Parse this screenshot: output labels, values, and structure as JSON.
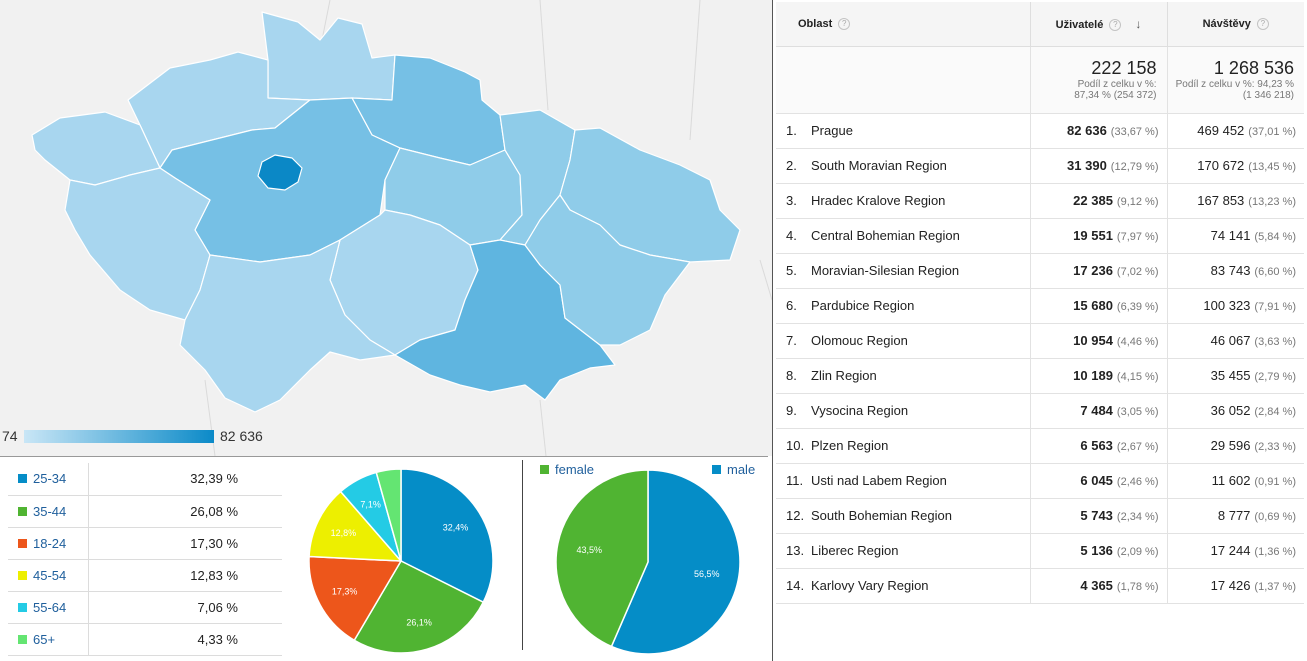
{
  "map": {
    "legend_min": "74",
    "legend_max": "82 636",
    "colors": {
      "light": "#a8d6ef",
      "mid": "#8fcce9",
      "darker": "#76c0e5",
      "dark": "#5fb5e0",
      "prague": "#0b88c6"
    }
  },
  "age": {
    "rows": [
      {
        "label": "25-34",
        "value": "32,39 %",
        "color": "#058dc7"
      },
      {
        "label": "35-44",
        "value": "26,08 %",
        "color": "#50b432"
      },
      {
        "label": "18-24",
        "value": "17,30 %",
        "color": "#ed561b"
      },
      {
        "label": "45-54",
        "value": "12,83 %",
        "color": "#edef00"
      },
      {
        "label": "55-64",
        "value": "7,06 %",
        "color": "#24cbe5"
      },
      {
        "label": "65+",
        "value": "4,33 %",
        "color": "#64e572"
      }
    ]
  },
  "chart_data": [
    {
      "type": "pie",
      "categories": [
        "25-34",
        "35-44",
        "18-24",
        "45-54",
        "55-64",
        "65+"
      ],
      "values": [
        32.39,
        26.08,
        17.3,
        12.83,
        7.06,
        4.33
      ],
      "slice_labels": [
        "32,4%",
        "26,1%",
        "17,3%",
        "12,8%",
        "7,1%",
        ""
      ],
      "colors": [
        "#058dc7",
        "#50b432",
        "#ed561b",
        "#edef00",
        "#24cbe5",
        "#64e572"
      ]
    },
    {
      "type": "pie",
      "categories": [
        "male",
        "female"
      ],
      "values": [
        56.5,
        43.5
      ],
      "slice_labels": [
        "56,5%",
        "43,5%"
      ],
      "colors": [
        "#058dc7",
        "#50b432"
      ]
    }
  ],
  "gender": {
    "female_label": "female",
    "male_label": "male",
    "female_color": "#50b432",
    "male_color": "#058dc7"
  },
  "table": {
    "headers": {
      "oblast": "Oblast",
      "users": "Uživatelé",
      "visits": "Návštěvy"
    },
    "help_icon": "?",
    "sort_icon": "↓",
    "totals": {
      "users": "222 158",
      "users_share_1": "Podíl z celku v %:",
      "users_share_2": "87,34 % (254 372)",
      "visits": "1 268 536",
      "visits_share_1": "Podíl z celku v %: 94,23 %",
      "visits_share_2": "(1 346 218)"
    },
    "rows": [
      {
        "idx": "1.",
        "name": "Prague",
        "users": "82 636",
        "users_pct": "(33,67 %)",
        "visits": "469 452",
        "visits_pct": "(37,01 %)"
      },
      {
        "idx": "2.",
        "name": "South Moravian Region",
        "users": "31 390",
        "users_pct": "(12,79 %)",
        "visits": "170 672",
        "visits_pct": "(13,45 %)"
      },
      {
        "idx": "3.",
        "name": "Hradec Kralove Region",
        "users": "22 385",
        "users_pct": "(9,12 %)",
        "visits": "167 853",
        "visits_pct": "(13,23 %)"
      },
      {
        "idx": "4.",
        "name": "Central Bohemian Region",
        "users": "19 551",
        "users_pct": "(7,97 %)",
        "visits": "74 141",
        "visits_pct": "(5,84 %)"
      },
      {
        "idx": "5.",
        "name": "Moravian-Silesian Region",
        "users": "17 236",
        "users_pct": "(7,02 %)",
        "visits": "83 743",
        "visits_pct": "(6,60 %)"
      },
      {
        "idx": "6.",
        "name": "Pardubice Region",
        "users": "15 680",
        "users_pct": "(6,39 %)",
        "visits": "100 323",
        "visits_pct": "(7,91 %)"
      },
      {
        "idx": "7.",
        "name": "Olomouc Region",
        "users": "10 954",
        "users_pct": "(4,46 %)",
        "visits": "46 067",
        "visits_pct": "(3,63 %)"
      },
      {
        "idx": "8.",
        "name": "Zlin Region",
        "users": "10 189",
        "users_pct": "(4,15 %)",
        "visits": "35 455",
        "visits_pct": "(2,79 %)"
      },
      {
        "idx": "9.",
        "name": "Vysocina Region",
        "users": "7 484",
        "users_pct": "(3,05 %)",
        "visits": "36 052",
        "visits_pct": "(2,84 %)"
      },
      {
        "idx": "10.",
        "name": "Plzen Region",
        "users": "6 563",
        "users_pct": "(2,67 %)",
        "visits": "29 596",
        "visits_pct": "(2,33 %)"
      },
      {
        "idx": "11.",
        "name": "Usti nad Labem Region",
        "users": "6 045",
        "users_pct": "(2,46 %)",
        "visits": "11 602",
        "visits_pct": "(0,91 %)"
      },
      {
        "idx": "12.",
        "name": "South Bohemian Region",
        "users": "5 743",
        "users_pct": "(2,34 %)",
        "visits": "8 777",
        "visits_pct": "(0,69 %)"
      },
      {
        "idx": "13.",
        "name": "Liberec Region",
        "users": "5 136",
        "users_pct": "(2,09 %)",
        "visits": "17 244",
        "visits_pct": "(1,36 %)"
      },
      {
        "idx": "14.",
        "name": "Karlovy Vary Region",
        "users": "4 365",
        "users_pct": "(1,78 %)",
        "visits": "17 426",
        "visits_pct": "(1,37 %)"
      }
    ]
  }
}
